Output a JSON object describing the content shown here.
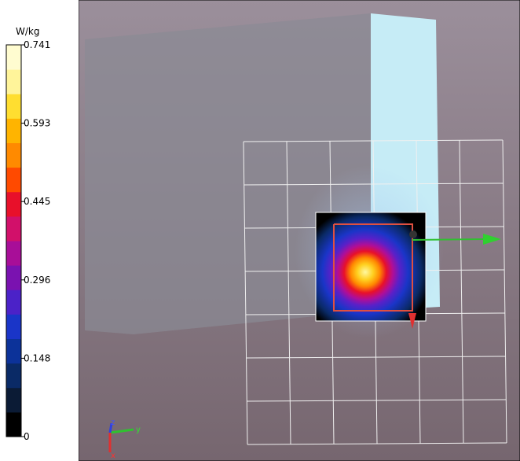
{
  "colorbar": {
    "unit": "W/kg",
    "ticks": [
      "0.741",
      "0.593",
      "0.445",
      "0.296",
      "0.148",
      "0"
    ]
  },
  "axes": {
    "z": "z",
    "y": "y",
    "x": "x"
  }
}
